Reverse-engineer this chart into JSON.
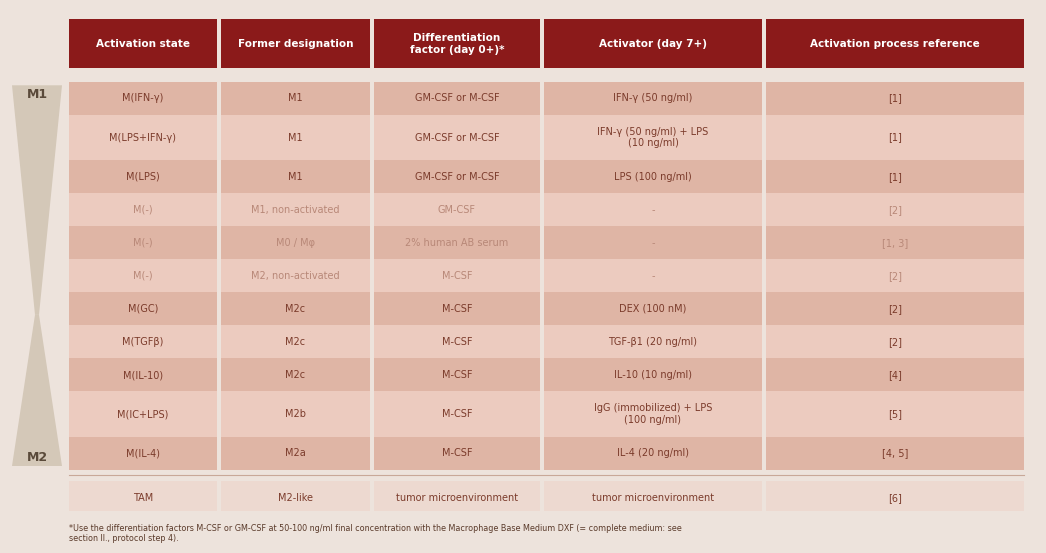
{
  "header": [
    "Activation state",
    "Former designation",
    "Differentiation\nfactor (day 0+)*",
    "Activator (day 7+)",
    "Activation process reference"
  ],
  "header_bg": "#8B1A1A",
  "header_text_color": "#FFFFFF",
  "rows": [
    {
      "activation": "M(IFN-γ)",
      "former": "M1",
      "diff": "GM-CSF or M-CSF",
      "activator": "IFN-γ (50 ng/ml)",
      "ref": "[1]",
      "bg": "#DFB5A5",
      "text_color": "#7B3B2B"
    },
    {
      "activation": "M(LPS+IFN-γ)",
      "former": "M1",
      "diff": "GM-CSF or M-CSF",
      "activator": "IFN-γ (50 ng/ml) + LPS\n(10 ng/ml)",
      "ref": "[1]",
      "bg": "#ECCBBF",
      "text_color": "#7B3B2B"
    },
    {
      "activation": "M(LPS)",
      "former": "M1",
      "diff": "GM-CSF or M-CSF",
      "activator": "LPS (100 ng/ml)",
      "ref": "[1]",
      "bg": "#DFB5A5",
      "text_color": "#7B3B2B"
    },
    {
      "activation": "M(-)",
      "former": "M1, non-activated",
      "diff": "GM-CSF",
      "activator": "-",
      "ref": "[2]",
      "bg": "#ECCBBF",
      "text_color": "#B88878"
    },
    {
      "activation": "M(-)",
      "former": "M0 / Mφ",
      "diff": "2% human AB serum",
      "activator": "-",
      "ref": "[1, 3]",
      "bg": "#DFB5A5",
      "text_color": "#B88878"
    },
    {
      "activation": "M(-)",
      "former": "M2, non-activated",
      "diff": "M-CSF",
      "activator": "-",
      "ref": "[2]",
      "bg": "#ECCBBF",
      "text_color": "#B88878"
    },
    {
      "activation": "M(GC)",
      "former": "M2c",
      "diff": "M-CSF",
      "activator": "DEX (100 nM)",
      "ref": "[2]",
      "bg": "#DFB5A5",
      "text_color": "#7B3B2B"
    },
    {
      "activation": "M(TGFβ)",
      "former": "M2c",
      "diff": "M-CSF",
      "activator": "TGF-β1 (20 ng/ml)",
      "ref": "[2]",
      "bg": "#ECCBBF",
      "text_color": "#7B3B2B"
    },
    {
      "activation": "M(IL-10)",
      "former": "M2c",
      "diff": "M-CSF",
      "activator": "IL-10 (10 ng/ml)",
      "ref": "[4]",
      "bg": "#DFB5A5",
      "text_color": "#7B3B2B"
    },
    {
      "activation": "M(IC+LPS)",
      "former": "M2b",
      "diff": "M-CSF",
      "activator": "IgG (immobilized) + LPS\n(100 ng/ml)",
      "ref": "[5]",
      "bg": "#ECCBBF",
      "text_color": "#7B3B2B"
    },
    {
      "activation": "M(IL-4)",
      "former": "M2a",
      "diff": "M-CSF",
      "activator": "IL-4 (20 ng/ml)",
      "ref": "[4, 5]",
      "bg": "#DFB5A5",
      "text_color": "#7B3B2B"
    },
    {
      "activation": "TAM",
      "former": "M2-like",
      "diff": "tumor microenvironment",
      "activator": "tumor microenvironment",
      "ref": "[6]",
      "bg": "#EDD9D0",
      "text_color": "#7B3B2B"
    }
  ],
  "footnote": "*Use the differentiation factors M-CSF or GM-CSF at 50-100 ng/ml final concentration with the Macrophage Base Medium DXF (= complete medium: see\nsection II., protocol step 4).",
  "bg_color": "#EDE3DC",
  "hourglass_color": "#D4C8B8",
  "label_color": "#5A4A3A"
}
